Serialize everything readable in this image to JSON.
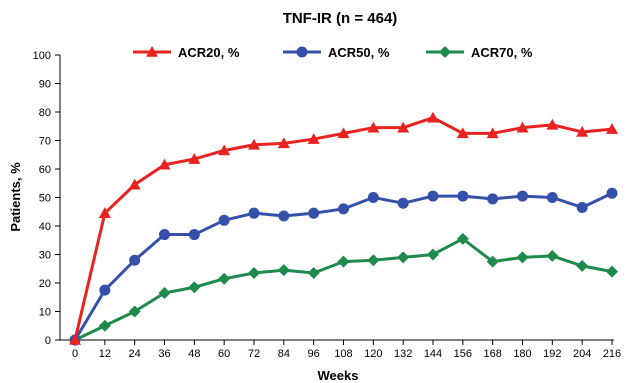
{
  "chart_data": {
    "type": "line",
    "title": "TNF-IR (n = 464)",
    "xlabel": "Weeks",
    "ylabel": "Patients, %",
    "x": [
      0,
      12,
      24,
      36,
      48,
      60,
      72,
      84,
      96,
      108,
      120,
      132,
      144,
      156,
      168,
      180,
      192,
      204,
      216
    ],
    "x_tick_labels": [
      "0",
      "12",
      "24",
      "36",
      "48",
      "60",
      "72",
      "84",
      "96",
      "108",
      "120",
      "132",
      "144",
      "156",
      "168",
      "180",
      "192",
      "204",
      "216"
    ],
    "y_tick_labels": [
      "0",
      "10",
      "20",
      "30",
      "40",
      "50",
      "60",
      "70",
      "80",
      "90",
      "100"
    ],
    "ylim": [
      0,
      100
    ],
    "grid": false,
    "legend_position": "top",
    "series": [
      {
        "name": "ACR20, %",
        "color": "#e8231f",
        "marker": "triangle",
        "values": [
          0,
          44.5,
          54.5,
          61.5,
          63.5,
          66.5,
          68.5,
          69,
          70.5,
          72.5,
          74.5,
          74.5,
          78,
          72.5,
          72.5,
          74.5,
          75.5,
          73,
          74
        ]
      },
      {
        "name": "ACR50, %",
        "color": "#3550a8",
        "marker": "circle",
        "values": [
          0,
          17.5,
          28,
          37,
          37,
          42,
          44.5,
          43.5,
          44.5,
          46,
          50,
          48,
          50.5,
          50.5,
          49.5,
          50.5,
          50,
          46.5,
          51.5
        ]
      },
      {
        "name": "ACR70, %",
        "color": "#1e8a4c",
        "marker": "diamond",
        "values": [
          0,
          5,
          10,
          16.5,
          18.5,
          21.5,
          23.5,
          24.5,
          23.5,
          27.5,
          28,
          29,
          30,
          35.5,
          27.5,
          29,
          29.5,
          26,
          24
        ]
      }
    ]
  }
}
